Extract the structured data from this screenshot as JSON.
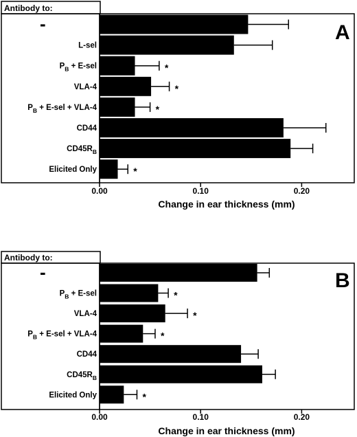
{
  "chart_data": [
    {
      "type": "bar",
      "orientation": "horizontal",
      "panel": "A",
      "header": "Antibody to:",
      "xlabel": "Change in ear thickness (mm)",
      "xlim": [
        0,
        0.25
      ],
      "xticks": [
        "0.00",
        "0.10",
        "0.20"
      ],
      "categories": [
        [
          {
            "t": "-"
          }
        ],
        [
          {
            "t": "L-sel"
          }
        ],
        [
          {
            "t": "P"
          },
          {
            "t": "B",
            "sub": true
          },
          {
            "t": " + E-sel"
          }
        ],
        [
          {
            "t": "VLA-4"
          }
        ],
        [
          {
            "t": "P"
          },
          {
            "t": "B",
            "sub": true
          },
          {
            "t": " + E-sel + VLA-4"
          }
        ],
        [
          {
            "t": "CD44"
          }
        ],
        [
          {
            "t": "CD45R"
          },
          {
            "t": "B",
            "sub": true
          }
        ],
        [
          {
            "t": "Elicited Only"
          }
        ]
      ],
      "values": [
        0.147,
        0.133,
        0.035,
        0.051,
        0.035,
        0.182,
        0.189,
        0.018
      ],
      "errors": [
        0.04,
        0.038,
        0.024,
        0.018,
        0.015,
        0.042,
        0.022,
        0.01
      ],
      "significant": [
        false,
        false,
        true,
        true,
        true,
        false,
        false,
        true
      ],
      "significance_marker": "*"
    },
    {
      "type": "bar",
      "orientation": "horizontal",
      "panel": "B",
      "header": "Antibody to:",
      "xlabel": "Change in ear thickness (mm)",
      "xlim": [
        0,
        0.25
      ],
      "xticks": [
        "0.00",
        "0.10",
        "0.20"
      ],
      "categories": [
        [
          {
            "t": "-"
          }
        ],
        [
          {
            "t": "P"
          },
          {
            "t": "B",
            "sub": true
          },
          {
            "t": " + E-sel"
          }
        ],
        [
          {
            "t": "VLA-4"
          }
        ],
        [
          {
            "t": "P"
          },
          {
            "t": "B",
            "sub": true
          },
          {
            "t": " + E-sel + VLA-4"
          }
        ],
        [
          {
            "t": "CD44"
          }
        ],
        [
          {
            "t": "CD45R"
          },
          {
            "t": "B",
            "sub": true
          }
        ],
        [
          {
            "t": "Elicited Only"
          }
        ]
      ],
      "values": [
        0.156,
        0.058,
        0.065,
        0.043,
        0.14,
        0.161,
        0.024
      ],
      "errors": [
        0.012,
        0.01,
        0.022,
        0.012,
        0.017,
        0.013,
        0.013
      ],
      "significant": [
        false,
        true,
        true,
        true,
        false,
        false,
        true
      ],
      "significance_marker": "*"
    }
  ],
  "colors": {
    "bar": "#000000",
    "frame": "#000000",
    "background": "#ffffff"
  }
}
